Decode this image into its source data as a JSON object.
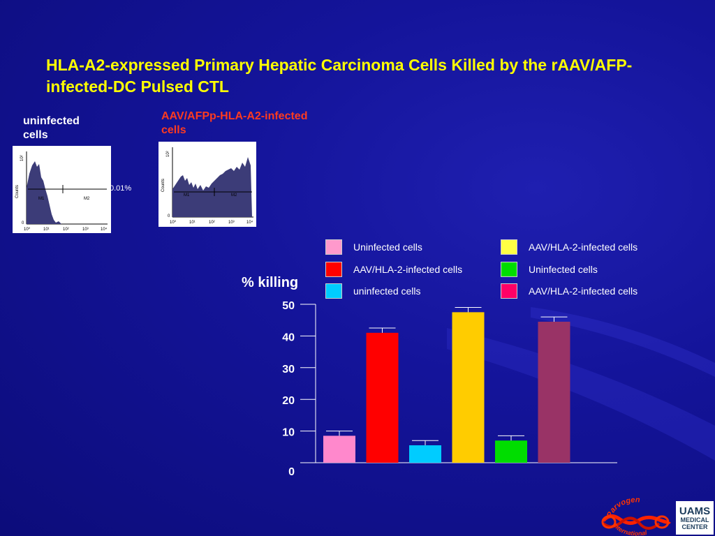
{
  "slide": {
    "title": "HLA-A2-expressed Primary Hepatic Carcinoma Cells Killed by the rAAV/AFP-infected-DC Pulsed CTL",
    "panel_left_label": "uninfected cells",
    "panel_right_label": "AAV/AFPp-HLA-A2-infected cells",
    "panel_left_percent": "0.01%",
    "panel_left_histogram": {
      "y_axis_label": "Counts",
      "y_ticks": [
        "0",
        "10²"
      ],
      "x_ticks": [
        "10⁰",
        "10¹",
        "10²",
        "10³",
        "10⁴"
      ],
      "markers": [
        "M1",
        "M2"
      ]
    },
    "panel_right_histogram": {
      "y_axis_label": "Counts",
      "y_ticks": [
        "0",
        "10²"
      ],
      "x_ticks": [
        "10⁰",
        "10¹",
        "10²",
        "10³",
        "10⁴"
      ],
      "markers": [
        "M1",
        "M2"
      ]
    }
  },
  "chart_data": {
    "type": "bar",
    "title": "",
    "xlabel": "",
    "ylabel": "% killing",
    "ylim": [
      0,
      50
    ],
    "y_ticks": [
      0,
      10,
      20,
      30,
      40,
      50
    ],
    "categories": [
      "Uninfected cells",
      "AAV/HLA-2-infected cells",
      "uninfected cells",
      "AAV/HLA-2-infected cells",
      "Uninfected cells",
      "AAV/HLA-2-infected cells"
    ],
    "values": [
      8.5,
      41,
      5.5,
      47.5,
      7,
      44.5
    ],
    "errors": [
      1.5,
      1.5,
      1.5,
      1.5,
      1.5,
      1.5
    ],
    "colors": [
      "#ff88cc",
      "#ff0000",
      "#00ccff",
      "#ffcc00",
      "#00dd00",
      "#993366"
    ],
    "legend": [
      {
        "label": "Uninfected cells",
        "color": "#ff99cc"
      },
      {
        "label": "AAV/HLA-2-infected cells",
        "color": "#ff0000"
      },
      {
        "label": "uninfected cells",
        "color": "#00ccff"
      },
      {
        "label": "AAV/HLA-2-infected cells",
        "color": "#ffff44"
      },
      {
        "label": "Uninfected cells",
        "color": "#00dd00"
      },
      {
        "label": "AAV/HLA-2-infected cells",
        "color": "#ff0066"
      }
    ],
    "legend_placement": "top, two columns",
    "grid": false
  },
  "logos": {
    "parvogen_top": "Parvogen",
    "parvogen_bottom": "International",
    "uams_line1": "UAMS",
    "uams_line2": "MEDICAL",
    "uams_line3": "CENTER"
  }
}
